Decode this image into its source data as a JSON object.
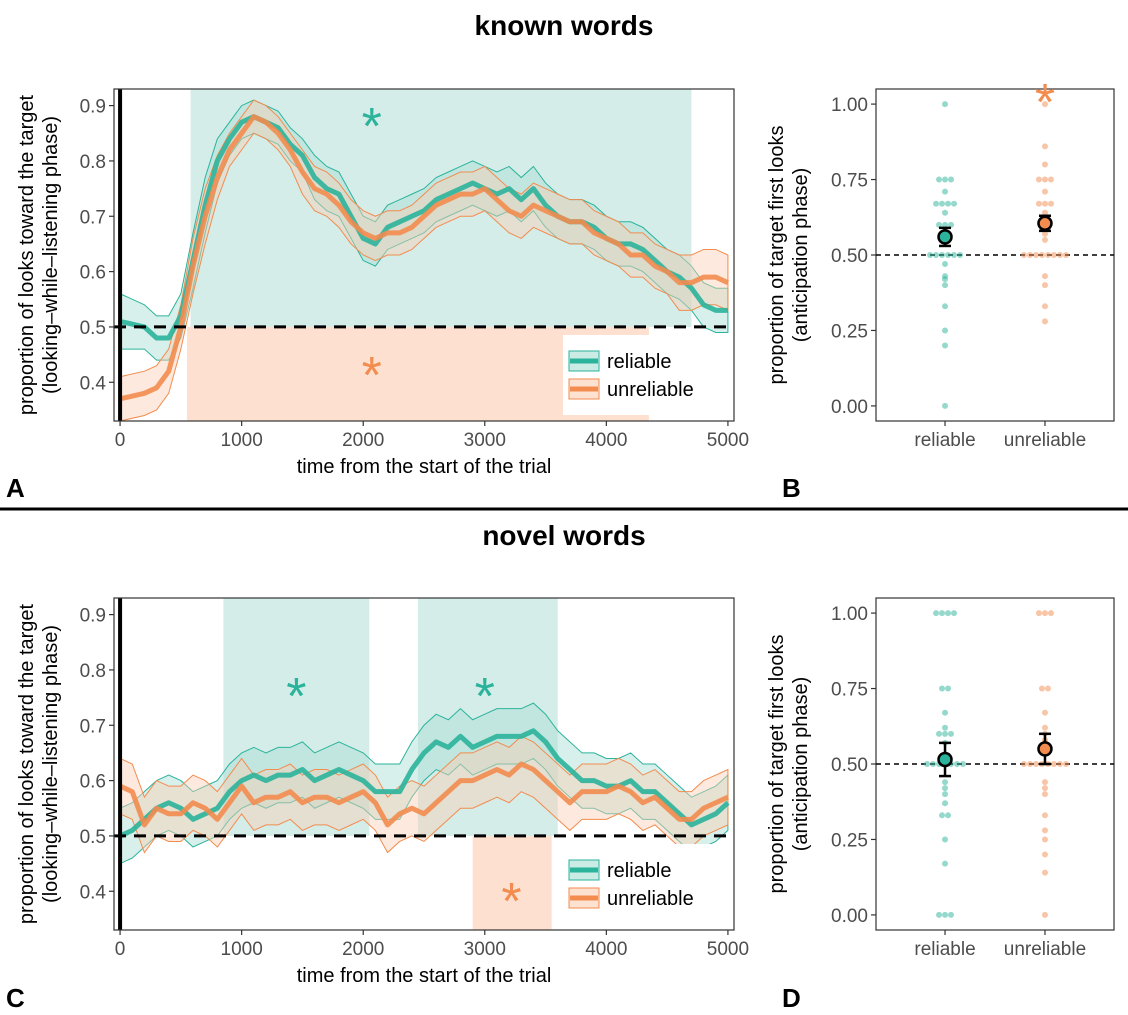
{
  "figure": {
    "top_title": "known words",
    "bottom_title": "novel words",
    "divider": true
  },
  "colors": {
    "reliable": "#2bb39b",
    "reliable_fill": "#a8ddd3",
    "unreliable": "#f28c4f",
    "unreliable_fill": "#fbcfb3",
    "sig_reliable": "#d4ede9",
    "sig_unreliable": "#fde0cf"
  },
  "chart_data": [
    {
      "panel_letter": "A",
      "type": "line",
      "title": "known words",
      "xlabel": "time from the start of the trial",
      "ylabel": "proportion of looks toward the target (looking–while–listening phase)",
      "ylabel_lines": [
        "proportion of looks toward the target",
        "(looking–while–listening phase)"
      ],
      "xlim": [
        -50,
        5050
      ],
      "ylim": [
        0.33,
        0.93
      ],
      "xticks": [
        0,
        1000,
        2000,
        3000,
        4000,
        5000
      ],
      "yticks": [
        0.4,
        0.5,
        0.6,
        0.7,
        0.8,
        0.9
      ],
      "ytick_labels": [
        "0.4",
        "0.5",
        "0.6",
        "0.7",
        "0.8",
        "0.9"
      ],
      "chance_line": 0.5,
      "legend": {
        "position": "bottom-right",
        "entries": [
          "reliable",
          "unreliable"
        ]
      },
      "significance_regions": [
        {
          "series": "reliable",
          "x_start": 580,
          "x_end": 4700,
          "y_from": 0.5,
          "y_to": "top",
          "label": "*",
          "label_x": 2070,
          "label_y": 0.87
        },
        {
          "series": "unreliable",
          "x_start": 550,
          "x_end": 4350,
          "y_from": "bottom",
          "y_to": 0.5,
          "label": "*",
          "label_x": 2070,
          "label_y": 0.42
        }
      ],
      "series": [
        {
          "name": "reliable",
          "x": [
            0,
            200,
            300,
            400,
            500,
            600,
            700,
            800,
            900,
            1000,
            1100,
            1200,
            1300,
            1400,
            1500,
            1600,
            1700,
            1800,
            1900,
            2000,
            2100,
            2200,
            2300,
            2400,
            2500,
            2600,
            2700,
            2800,
            2900,
            3000,
            3100,
            3200,
            3300,
            3400,
            3500,
            3600,
            3700,
            3800,
            3900,
            4000,
            4100,
            4200,
            4300,
            4400,
            4500,
            4600,
            4700,
            4800,
            4900,
            5000
          ],
          "y": [
            0.51,
            0.5,
            0.48,
            0.48,
            0.52,
            0.62,
            0.72,
            0.8,
            0.84,
            0.87,
            0.88,
            0.87,
            0.86,
            0.83,
            0.81,
            0.77,
            0.75,
            0.74,
            0.7,
            0.66,
            0.65,
            0.68,
            0.69,
            0.7,
            0.71,
            0.73,
            0.74,
            0.75,
            0.76,
            0.75,
            0.74,
            0.75,
            0.73,
            0.75,
            0.72,
            0.7,
            0.69,
            0.69,
            0.68,
            0.66,
            0.65,
            0.65,
            0.64,
            0.62,
            0.6,
            0.59,
            0.57,
            0.54,
            0.53,
            0.53
          ],
          "ci_half_width": [
            0.05,
            0.04,
            0.04,
            0.04,
            0.04,
            0.05,
            0.05,
            0.04,
            0.03,
            0.03,
            0.03,
            0.03,
            0.03,
            0.03,
            0.03,
            0.04,
            0.04,
            0.04,
            0.04,
            0.04,
            0.04,
            0.04,
            0.04,
            0.04,
            0.04,
            0.04,
            0.04,
            0.04,
            0.04,
            0.04,
            0.04,
            0.04,
            0.04,
            0.04,
            0.04,
            0.04,
            0.04,
            0.04,
            0.04,
            0.04,
            0.04,
            0.04,
            0.04,
            0.04,
            0.04,
            0.04,
            0.04,
            0.04,
            0.04,
            0.04
          ]
        },
        {
          "name": "unreliable",
          "x": [
            0,
            200,
            300,
            400,
            500,
            600,
            700,
            800,
            900,
            1000,
            1100,
            1200,
            1300,
            1400,
            1500,
            1600,
            1700,
            1800,
            1900,
            2000,
            2100,
            2200,
            2300,
            2400,
            2500,
            2600,
            2700,
            2800,
            2900,
            3000,
            3100,
            3200,
            3300,
            3400,
            3500,
            3600,
            3700,
            3800,
            3900,
            4000,
            4100,
            4200,
            4300,
            4400,
            4500,
            4600,
            4700,
            4800,
            4900,
            5000
          ],
          "y": [
            0.37,
            0.38,
            0.39,
            0.42,
            0.5,
            0.61,
            0.7,
            0.77,
            0.82,
            0.85,
            0.88,
            0.87,
            0.85,
            0.82,
            0.78,
            0.75,
            0.74,
            0.72,
            0.69,
            0.67,
            0.66,
            0.67,
            0.67,
            0.68,
            0.7,
            0.72,
            0.73,
            0.74,
            0.74,
            0.75,
            0.73,
            0.71,
            0.7,
            0.72,
            0.71,
            0.7,
            0.69,
            0.69,
            0.67,
            0.66,
            0.65,
            0.63,
            0.63,
            0.61,
            0.6,
            0.58,
            0.58,
            0.59,
            0.59,
            0.58
          ],
          "ci_half_width": [
            0.04,
            0.04,
            0.04,
            0.04,
            0.04,
            0.05,
            0.05,
            0.04,
            0.03,
            0.03,
            0.03,
            0.03,
            0.03,
            0.03,
            0.04,
            0.04,
            0.04,
            0.04,
            0.04,
            0.04,
            0.04,
            0.04,
            0.04,
            0.04,
            0.04,
            0.04,
            0.04,
            0.04,
            0.04,
            0.04,
            0.04,
            0.04,
            0.04,
            0.04,
            0.04,
            0.04,
            0.04,
            0.04,
            0.04,
            0.04,
            0.04,
            0.04,
            0.04,
            0.04,
            0.04,
            0.05,
            0.05,
            0.05,
            0.05,
            0.05
          ]
        }
      ]
    },
    {
      "panel_letter": "B",
      "type": "scatter",
      "xlabel": "",
      "ylabel": "proportion of target first looks (anticipation phase)",
      "ylabel_lines": [
        "proportion of target first looks",
        "(anticipation phase)"
      ],
      "categories": [
        "reliable",
        "unreliable"
      ],
      "ylim": [
        -0.05,
        1.05
      ],
      "yticks": [
        0.0,
        0.25,
        0.5,
        0.75,
        1.0
      ],
      "ytick_labels": [
        "0.00",
        "0.25",
        "0.50",
        "0.75",
        "1.00"
      ],
      "chance_line": 0.5,
      "significance": [
        {
          "category": "unreliable",
          "label": "*",
          "y": 1.02
        }
      ],
      "points": {
        "reliable": [
          1.0,
          0.75,
          0.75,
          0.75,
          0.71,
          0.67,
          0.67,
          0.67,
          0.67,
          0.64,
          0.6,
          0.6,
          0.6,
          0.58,
          0.55,
          0.5,
          0.5,
          0.5,
          0.5,
          0.5,
          0.5,
          0.47,
          0.43,
          0.42,
          0.4,
          0.33,
          0.25,
          0.2,
          0.0
        ],
        "unreliable": [
          1.0,
          0.86,
          0.8,
          0.75,
          0.75,
          0.75,
          0.71,
          0.67,
          0.67,
          0.67,
          0.64,
          0.62,
          0.6,
          0.6,
          0.57,
          0.55,
          0.5,
          0.5,
          0.5,
          0.5,
          0.5,
          0.5,
          0.5,
          0.5,
          0.43,
          0.4,
          0.33,
          0.28
        ]
      },
      "summary": [
        {
          "category": "reliable",
          "mean": 0.56,
          "lo": 0.53,
          "hi": 0.59
        },
        {
          "category": "unreliable",
          "mean": 0.605,
          "lo": 0.58,
          "hi": 0.63
        }
      ]
    },
    {
      "panel_letter": "C",
      "type": "line",
      "title": "novel words",
      "xlabel": "time from the start of the trial",
      "ylabel": "proportion of looks toward the target (looking–while–listening phase)",
      "ylabel_lines": [
        "proportion of looks toward the target",
        "(looking–while–listening phase)"
      ],
      "xlim": [
        -50,
        5050
      ],
      "ylim": [
        0.33,
        0.93
      ],
      "xticks": [
        0,
        1000,
        2000,
        3000,
        4000,
        5000
      ],
      "yticks": [
        0.4,
        0.5,
        0.6,
        0.7,
        0.8,
        0.9
      ],
      "ytick_labels": [
        "0.4",
        "0.5",
        "0.6",
        "0.7",
        "0.8",
        "0.9"
      ],
      "chance_line": 0.5,
      "legend": {
        "position": "bottom-right",
        "entries": [
          "reliable",
          "unreliable"
        ]
      },
      "significance_regions": [
        {
          "series": "reliable",
          "x_start": 850,
          "x_end": 2050,
          "y_from": 0.5,
          "y_to": "top",
          "label": "*",
          "label_x": 1450,
          "label_y": 0.76
        },
        {
          "series": "reliable",
          "x_start": 2450,
          "x_end": 3600,
          "y_from": 0.5,
          "y_to": "top",
          "label": "*",
          "label_x": 3000,
          "label_y": 0.76
        },
        {
          "series": "unreliable",
          "x_start": 2900,
          "x_end": 3550,
          "y_from": "bottom",
          "y_to": 0.5,
          "label": "*",
          "label_x": 3220,
          "label_y": 0.39
        }
      ],
      "series": [
        {
          "name": "reliable",
          "x": [
            0,
            100,
            200,
            300,
            400,
            500,
            600,
            700,
            800,
            900,
            1000,
            1100,
            1200,
            1300,
            1400,
            1500,
            1600,
            1700,
            1800,
            1900,
            2000,
            2100,
            2200,
            2300,
            2400,
            2500,
            2600,
            2700,
            2800,
            2900,
            3000,
            3100,
            3200,
            3300,
            3400,
            3500,
            3600,
            3700,
            3800,
            3900,
            4000,
            4100,
            4200,
            4300,
            4400,
            4500,
            4600,
            4700,
            4800,
            4900,
            5000
          ],
          "y": [
            0.5,
            0.51,
            0.53,
            0.55,
            0.56,
            0.55,
            0.53,
            0.54,
            0.55,
            0.58,
            0.6,
            0.61,
            0.6,
            0.61,
            0.61,
            0.62,
            0.6,
            0.61,
            0.62,
            0.61,
            0.6,
            0.58,
            0.58,
            0.58,
            0.62,
            0.65,
            0.67,
            0.66,
            0.68,
            0.66,
            0.67,
            0.68,
            0.68,
            0.68,
            0.69,
            0.67,
            0.64,
            0.62,
            0.6,
            0.6,
            0.59,
            0.59,
            0.6,
            0.58,
            0.58,
            0.56,
            0.54,
            0.52,
            0.53,
            0.54,
            0.56
          ],
          "ci_half_width": [
            0.05,
            0.05,
            0.05,
            0.05,
            0.05,
            0.05,
            0.05,
            0.05,
            0.05,
            0.05,
            0.05,
            0.05,
            0.05,
            0.05,
            0.05,
            0.05,
            0.05,
            0.05,
            0.05,
            0.05,
            0.05,
            0.05,
            0.05,
            0.05,
            0.05,
            0.05,
            0.05,
            0.05,
            0.05,
            0.05,
            0.05,
            0.05,
            0.05,
            0.05,
            0.05,
            0.05,
            0.05,
            0.05,
            0.05,
            0.05,
            0.05,
            0.05,
            0.05,
            0.05,
            0.05,
            0.05,
            0.05,
            0.05,
            0.05,
            0.05,
            0.05
          ]
        },
        {
          "name": "unreliable",
          "x": [
            0,
            100,
            200,
            300,
            400,
            500,
            600,
            700,
            800,
            900,
            1000,
            1100,
            1200,
            1300,
            1400,
            1500,
            1600,
            1700,
            1800,
            1900,
            2000,
            2100,
            2200,
            2300,
            2400,
            2500,
            2600,
            2700,
            2800,
            2900,
            3000,
            3100,
            3200,
            3300,
            3400,
            3500,
            3600,
            3700,
            3800,
            3900,
            4000,
            4100,
            4200,
            4300,
            4400,
            4500,
            4600,
            4700,
            4800,
            4900,
            5000
          ],
          "y": [
            0.59,
            0.58,
            0.52,
            0.55,
            0.54,
            0.54,
            0.56,
            0.55,
            0.53,
            0.56,
            0.59,
            0.56,
            0.57,
            0.57,
            0.58,
            0.56,
            0.57,
            0.57,
            0.56,
            0.57,
            0.58,
            0.56,
            0.52,
            0.54,
            0.55,
            0.54,
            0.56,
            0.58,
            0.6,
            0.6,
            0.61,
            0.62,
            0.61,
            0.63,
            0.62,
            0.6,
            0.58,
            0.56,
            0.58,
            0.58,
            0.58,
            0.59,
            0.58,
            0.56,
            0.57,
            0.55,
            0.53,
            0.53,
            0.55,
            0.56,
            0.57
          ],
          "ci_half_width": [
            0.05,
            0.05,
            0.05,
            0.05,
            0.05,
            0.05,
            0.05,
            0.05,
            0.05,
            0.05,
            0.05,
            0.05,
            0.05,
            0.05,
            0.05,
            0.05,
            0.05,
            0.05,
            0.05,
            0.05,
            0.05,
            0.05,
            0.05,
            0.05,
            0.05,
            0.05,
            0.05,
            0.05,
            0.05,
            0.05,
            0.05,
            0.05,
            0.05,
            0.05,
            0.05,
            0.05,
            0.05,
            0.05,
            0.05,
            0.05,
            0.05,
            0.05,
            0.05,
            0.05,
            0.05,
            0.05,
            0.05,
            0.05,
            0.05,
            0.05,
            0.05
          ]
        }
      ]
    },
    {
      "panel_letter": "D",
      "type": "scatter",
      "xlabel": "",
      "ylabel": "proportion of target first looks (anticipation phase)",
      "ylabel_lines": [
        "proportion of target first looks",
        "(anticipation phase)"
      ],
      "categories": [
        "reliable",
        "unreliable"
      ],
      "ylim": [
        -0.05,
        1.05
      ],
      "yticks": [
        0.0,
        0.25,
        0.5,
        0.75,
        1.0
      ],
      "ytick_labels": [
        "0.00",
        "0.25",
        "0.50",
        "0.75",
        "1.00"
      ],
      "chance_line": 0.5,
      "significance": [],
      "points": {
        "reliable": [
          1.0,
          1.0,
          1.0,
          1.0,
          0.75,
          0.75,
          0.67,
          0.62,
          0.6,
          0.6,
          0.6,
          0.57,
          0.5,
          0.5,
          0.5,
          0.5,
          0.5,
          0.5,
          0.5,
          0.44,
          0.42,
          0.4,
          0.37,
          0.33,
          0.33,
          0.25,
          0.17,
          0.0,
          0.0,
          0.0
        ],
        "unreliable": [
          1.0,
          1.0,
          1.0,
          0.75,
          0.75,
          0.67,
          0.62,
          0.6,
          0.58,
          0.57,
          0.55,
          0.5,
          0.5,
          0.5,
          0.5,
          0.5,
          0.5,
          0.5,
          0.5,
          0.44,
          0.42,
          0.4,
          0.33,
          0.28,
          0.25,
          0.2,
          0.14,
          0.0
        ]
      },
      "summary": [
        {
          "category": "reliable",
          "mean": 0.515,
          "lo": 0.46,
          "hi": 0.57
        },
        {
          "category": "unreliable",
          "mean": 0.55,
          "lo": 0.5,
          "hi": 0.6
        }
      ]
    }
  ]
}
